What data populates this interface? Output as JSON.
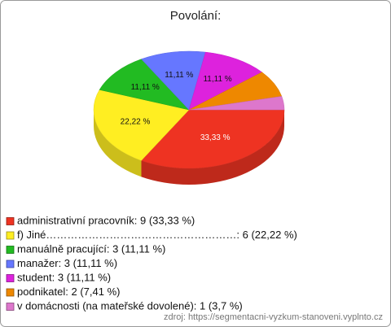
{
  "chart_data": {
    "type": "pie3d",
    "title": "Povolání:",
    "categories": [
      "administrativní pracovník: 9 (33,33 %)",
      "f) Jiné………………………………………………: 6 (22,22 %)",
      "manuálně pracující: 3 (11,11 %)",
      "manažer: 3 (11,11 %)",
      "student: 3 (11,11 %)",
      "podnikatel: 2 (7,41 %)",
      "v domácnosti (na mateřské dovolené): 1 (3,7 %)"
    ],
    "values": [
      33.33,
      22.22,
      11.11,
      11.11,
      11.11,
      7.41,
      3.7
    ],
    "value_labels": [
      "33,33 %",
      "22,22 %",
      "11,11 %",
      "11,11 %",
      "11,11 %",
      null,
      null
    ],
    "colors": [
      "#ee3322",
      "#ffee22",
      "#22bb22",
      "#6677ff",
      "#dd22dd",
      "#ee8800",
      "#dd77cc"
    ],
    "source": "zdroj: https://segmentacni-vyzkum-stanoveni.vyplnto.cz"
  }
}
